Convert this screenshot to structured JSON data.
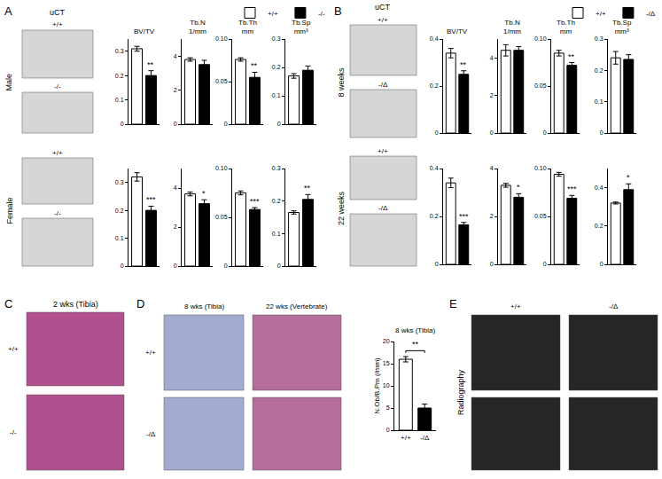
{
  "panels": {
    "A": {
      "label": "A",
      "header": "uCT",
      "rows": [
        {
          "label": "Male",
          "images": [
            "+/+",
            "-/-"
          ]
        },
        {
          "label": "Female",
          "images": [
            "+/+",
            "-/-"
          ]
        }
      ]
    },
    "B": {
      "label": "B",
      "header": "uCT",
      "rows": [
        {
          "label": "8 weeks",
          "images": [
            "+/+",
            "-/Δ"
          ]
        },
        {
          "label": "22 weeks",
          "images": [
            "+/+",
            "-/Δ"
          ]
        }
      ]
    },
    "C": {
      "label": "C",
      "title": "2 wks (Tibia)",
      "rows": [
        "+/+",
        "-/-"
      ]
    },
    "D": {
      "label": "D",
      "columns": [
        "8 wks (Tibia)",
        "22 wks (Vertebrate)"
      ],
      "rows": [
        "+/+",
        "-/Δ"
      ]
    },
    "E": {
      "label": "E",
      "title": "Radiography",
      "columns": [
        "+/+",
        "-/Δ"
      ]
    }
  },
  "chart_data": [
    {
      "type": "bar",
      "title": "BV/TV",
      "series": [
        {
          "name": "+/+",
          "color": "#ffffff",
          "values": [
            0.31
          ],
          "errors": [
            0.01
          ]
        },
        {
          "name": "-/-",
          "color": "#000000",
          "values": [
            0.2
          ],
          "errors": [
            0.02
          ]
        }
      ],
      "ylim": [
        0,
        0.35
      ],
      "yticks": [
        0,
        0.1,
        0.2,
        0.3
      ],
      "annotations": [
        "**"
      ],
      "tick_labels": "y"
    },
    {
      "type": "bar",
      "title": "Tb.N",
      "subtitle": "1/mm",
      "series": [
        {
          "name": "+/+",
          "color": "#ffffff",
          "values": [
            3.8
          ],
          "errors": [
            0.1
          ]
        },
        {
          "name": "-/-",
          "color": "#000000",
          "values": [
            3.5
          ],
          "errors": [
            0.25
          ]
        }
      ],
      "ylim": [
        0,
        5
      ],
      "yticks": [
        0,
        2,
        4
      ],
      "tick_labels": "y"
    },
    {
      "type": "bar",
      "title": "Tb.Th",
      "subtitle": "mm",
      "series": [
        {
          "name": "+/+",
          "color": "#ffffff",
          "values": [
            0.076
          ],
          "errors": [
            0.002
          ]
        },
        {
          "name": "-/-",
          "color": "#000000",
          "values": [
            0.055
          ],
          "errors": [
            0.006
          ]
        }
      ],
      "ylim": [
        0,
        0.1
      ],
      "yticks": [
        0,
        0.05,
        {
          "value": 0.1,
          "label": "0.10"
        }
      ],
      "annotations": [
        "**"
      ],
      "tick_labels": "y"
    },
    {
      "type": "bar",
      "title": "Tb.Sp",
      "subtitle": "mm³",
      "series": [
        {
          "name": "+/+",
          "color": "#ffffff",
          "values": [
            0.17
          ],
          "errors": [
            0.008
          ]
        },
        {
          "name": "-/-",
          "color": "#000000",
          "values": [
            0.19
          ],
          "errors": [
            0.015
          ]
        }
      ],
      "ylim": [
        0,
        0.3
      ],
      "yticks": [
        0,
        0.1,
        0.2,
        0.3
      ],
      "tick_labels": "y",
      "legend": "top right"
    },
    {
      "type": "bar",
      "series": [
        {
          "name": "+/+",
          "color": "#ffffff",
          "values": [
            0.32
          ],
          "errors": [
            0.015
          ]
        },
        {
          "name": "-/-",
          "color": "#000000",
          "values": [
            0.2
          ],
          "errors": [
            0.015
          ]
        }
      ],
      "ylim": [
        0,
        0.35
      ],
      "yticks": [
        0,
        0.1,
        0.2,
        0.3
      ],
      "annotations": [
        "***"
      ],
      "tick_labels": "y"
    },
    {
      "type": "bar",
      "series": [
        {
          "name": "+/+",
          "color": "#ffffff",
          "values": [
            3.7
          ],
          "errors": [
            0.1
          ]
        },
        {
          "name": "-/-",
          "color": "#000000",
          "values": [
            3.2
          ],
          "errors": [
            0.2
          ]
        }
      ],
      "ylim": [
        0,
        5
      ],
      "yticks": [
        0,
        2,
        4
      ],
      "annotations": [
        "*"
      ],
      "tick_labels": "y"
    },
    {
      "type": "bar",
      "series": [
        {
          "name": "+/+",
          "color": "#ffffff",
          "values": [
            0.075
          ],
          "errors": [
            0.002
          ]
        },
        {
          "name": "-/-",
          "color": "#000000",
          "values": [
            0.058
          ],
          "errors": [
            0.002
          ]
        }
      ],
      "ylim": [
        0,
        0.1
      ],
      "yticks": [
        0,
        0.05,
        {
          "value": 0.1,
          "label": "0.10"
        }
      ],
      "annotations": [
        "***"
      ],
      "tick_labels": "y"
    },
    {
      "type": "bar",
      "series": [
        {
          "name": "+/+",
          "color": "#ffffff",
          "values": [
            0.165
          ],
          "errors": [
            0.005
          ]
        },
        {
          "name": "-/-",
          "color": "#000000",
          "values": [
            0.205
          ],
          "errors": [
            0.015
          ]
        }
      ],
      "ylim": [
        0,
        0.3
      ],
      "yticks": [
        0,
        0.1,
        0.2,
        0.3
      ],
      "annotations": [
        "**"
      ],
      "tick_labels": "y"
    },
    {
      "type": "bar",
      "title": "BV/TV",
      "series": [
        {
          "name": "+/+",
          "color": "#ffffff",
          "values": [
            0.34
          ],
          "errors": [
            0.02
          ]
        },
        {
          "name": "-/Δ",
          "color": "#000000",
          "values": [
            0.25
          ],
          "errors": [
            0.015
          ]
        }
      ],
      "ylim": [
        0,
        0.4
      ],
      "yticks": [
        0,
        0.2,
        0.4
      ],
      "annotations": [
        "**"
      ],
      "tick_labels": "y"
    },
    {
      "type": "bar",
      "title": "Tb.N",
      "subtitle": "1/mm",
      "series": [
        {
          "name": "+/+",
          "color": "#ffffff",
          "values": [
            4.4
          ],
          "errors": [
            0.3
          ]
        },
        {
          "name": "-/Δ",
          "color": "#000000",
          "values": [
            4.4
          ],
          "errors": [
            0.2
          ]
        }
      ],
      "ylim": [
        0,
        5
      ],
      "yticks": [
        0,
        2,
        4
      ],
      "tick_labels": "y"
    },
    {
      "type": "bar",
      "title": "Tb.Th",
      "subtitle": "mm",
      "series": [
        {
          "name": "+/+",
          "color": "#ffffff",
          "values": [
            0.085
          ],
          "errors": [
            0.003
          ]
        },
        {
          "name": "-/Δ",
          "color": "#000000",
          "values": [
            0.072
          ],
          "errors": [
            0.003
          ]
        }
      ],
      "ylim": [
        0,
        0.1
      ],
      "yticks": [
        0,
        0.05,
        {
          "value": 0.1,
          "label": "0.10"
        }
      ],
      "annotations": [
        "**"
      ],
      "tick_labels": "y"
    },
    {
      "type": "bar",
      "title": "Tb.Sp",
      "subtitle": "mm³",
      "series": [
        {
          "name": "+/+",
          "color": "#ffffff",
          "values": [
            0.24
          ],
          "errors": [
            0.02
          ]
        },
        {
          "name": "-/Δ",
          "color": "#000000",
          "values": [
            0.235
          ],
          "errors": [
            0.015
          ]
        }
      ],
      "ylim": [
        0,
        0.3
      ],
      "yticks": [
        0,
        0.1,
        0.2,
        0.3
      ],
      "tick_labels": "y",
      "legend": "top right"
    },
    {
      "type": "bar",
      "series": [
        {
          "name": "+/+",
          "color": "#ffffff",
          "values": [
            0.34
          ],
          "errors": [
            0.02
          ]
        },
        {
          "name": "-/Δ",
          "color": "#000000",
          "values": [
            0.165
          ],
          "errors": [
            0.01
          ]
        }
      ],
      "ylim": [
        0,
        0.4
      ],
      "yticks": [
        0,
        0.2,
        0.4
      ],
      "annotations": [
        "***"
      ],
      "tick_labels": "y"
    },
    {
      "type": "bar",
      "series": [
        {
          "name": "+/+",
          "color": "#ffffff",
          "values": [
            3.3
          ],
          "errors": [
            0.08
          ]
        },
        {
          "name": "-/Δ",
          "color": "#000000",
          "values": [
            2.8
          ],
          "errors": [
            0.15
          ]
        }
      ],
      "ylim": [
        0,
        4
      ],
      "yticks": [
        0,
        2,
        4
      ],
      "annotations": [
        "*"
      ],
      "tick_labels": "y"
    },
    {
      "type": "bar",
      "series": [
        {
          "name": "+/+",
          "color": "#ffffff",
          "values": [
            0.094
          ],
          "errors": [
            0.002
          ]
        },
        {
          "name": "-/Δ",
          "color": "#000000",
          "values": [
            0.069
          ],
          "errors": [
            0.003
          ]
        }
      ],
      "ylim": [
        0,
        0.1
      ],
      "yticks": [
        0,
        0.05,
        {
          "value": 0.1,
          "label": "0.10"
        }
      ],
      "annotations": [
        "***"
      ],
      "tick_labels": "y"
    },
    {
      "type": "bar",
      "series": [
        {
          "name": "+/+",
          "color": "#ffffff",
          "values": [
            0.32
          ],
          "errors": [
            0.005
          ]
        },
        {
          "name": "-/Δ",
          "color": "#000000",
          "values": [
            0.39
          ],
          "errors": [
            0.03
          ]
        }
      ],
      "ylim": [
        0,
        0.5
      ],
      "yticks": [
        0,
        0.2,
        0.4
      ],
      "annotations": [
        "*"
      ],
      "tick_labels": "y"
    },
    {
      "type": "bar",
      "title": "8 wks (Tibia)",
      "categories": [
        "+/+",
        "-/Δ"
      ],
      "values": [
        16,
        5
      ],
      "errors": [
        0.6,
        0.9
      ],
      "colors": [
        "#ffffff",
        "#000000"
      ],
      "ylabel": "N.Ob/B.Pm (/mm)",
      "ylim": [
        0,
        20
      ],
      "yticks": [
        0,
        5,
        10,
        15,
        20
      ],
      "annotations": [
        "**"
      ]
    }
  ]
}
